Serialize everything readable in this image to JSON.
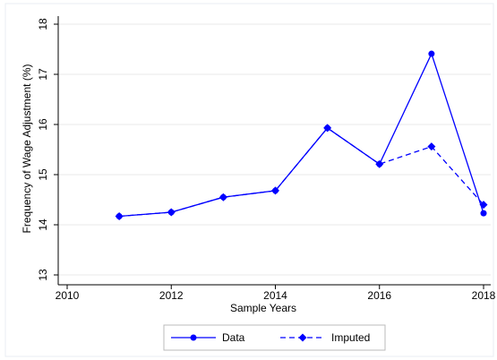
{
  "chart_data": {
    "type": "line",
    "xlabel": "Sample Years",
    "ylabel": "Frequency of Wage Adjustment (%)",
    "x": [
      2011,
      2012,
      2013,
      2014,
      2015,
      2016,
      2017,
      2018
    ],
    "series": [
      {
        "name": "Data",
        "color": "#0000ff",
        "marker": "circle",
        "line_style": "solid",
        "values": [
          14.17,
          14.25,
          14.55,
          14.68,
          15.93,
          15.21,
          17.41,
          14.23
        ]
      },
      {
        "name": "Imputed",
        "color": "#0000ff",
        "marker": "diamond",
        "line_style": "dashed",
        "values": [
          14.17,
          14.25,
          14.55,
          14.68,
          15.93,
          15.21,
          15.56,
          14.4
        ]
      }
    ],
    "xlim": [
      2010,
      2018
    ],
    "xticks": [
      2010,
      2012,
      2014,
      2016,
      2018
    ],
    "ylim": [
      13,
      18
    ],
    "yticks": [
      13,
      14,
      15,
      16,
      17,
      18
    ],
    "grid": true,
    "legend": "bottom"
  }
}
